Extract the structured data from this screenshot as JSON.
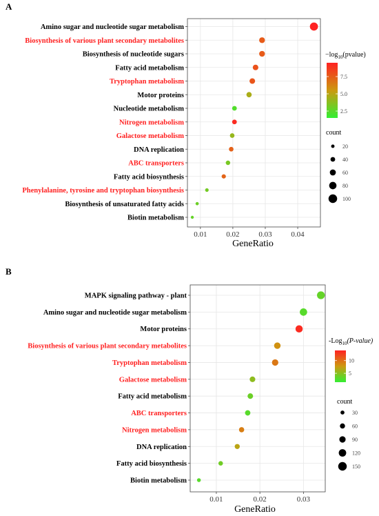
{
  "chart_data": [
    {
      "type": "scatter",
      "panel_label": "A",
      "xlabel": "GeneRatio",
      "xlim": [
        0.006,
        0.047
      ],
      "xticks": [
        0.01,
        0.02,
        0.03,
        0.04
      ],
      "xtick_labels": [
        "0.01",
        "0.02",
        "0.03",
        "0.04"
      ],
      "grid": true,
      "legend_position": "right",
      "categories": [
        {
          "name": "Amino sugar and nucleotide sugar metabolism",
          "x": 0.045,
          "count": 92,
          "pvalue": 9.5,
          "highlight": false
        },
        {
          "name": "Biosynthesis of various plant secondary metabolites",
          "x": 0.029,
          "count": 56,
          "pvalue": 7.6,
          "highlight": true
        },
        {
          "name": "Biosynthesis of nucleotide sugars",
          "x": 0.029,
          "count": 56,
          "pvalue": 7.6,
          "highlight": false
        },
        {
          "name": "Fatty acid metabolism",
          "x": 0.027,
          "count": 53,
          "pvalue": 7.9,
          "highlight": false
        },
        {
          "name": "Tryptophan metabolism",
          "x": 0.026,
          "count": 53,
          "pvalue": 7.8,
          "highlight": true
        },
        {
          "name": "Motor proteins",
          "x": 0.025,
          "count": 49,
          "pvalue": 4.6,
          "highlight": false
        },
        {
          "name": "Nucleotide metabolism",
          "x": 0.0205,
          "count": 40,
          "pvalue": 2.3,
          "highlight": false
        },
        {
          "name": "Nitrogen metabolism",
          "x": 0.0205,
          "count": 40,
          "pvalue": 9.2,
          "highlight": true
        },
        {
          "name": "Galactose metabolism",
          "x": 0.0198,
          "count": 38,
          "pvalue": 4.1,
          "highlight": true
        },
        {
          "name": "DNA replication",
          "x": 0.0195,
          "count": 38,
          "pvalue": 7.4,
          "highlight": false
        },
        {
          "name": "ABC transporters",
          "x": 0.0185,
          "count": 36,
          "pvalue": 3.3,
          "highlight": true
        },
        {
          "name": "Fatty acid biosynthesis",
          "x": 0.0172,
          "count": 33,
          "pvalue": 7.3,
          "highlight": false
        },
        {
          "name": "Phenylalanine, tyrosine and tryptophan biosynthesis",
          "x": 0.012,
          "count": 22,
          "pvalue": 3.2,
          "highlight": true
        },
        {
          "name": "Biosynthesis of unsaturated fatty acids",
          "x": 0.009,
          "count": 17,
          "pvalue": 3.0,
          "highlight": false
        },
        {
          "name": "Biotin metabolism",
          "x": 0.0075,
          "count": 14,
          "pvalue": 2.8,
          "highlight": false
        }
      ],
      "color_legend": {
        "title_main": "−log",
        "title_sub": "10",
        "title_rest": "(pvalue)",
        "min": 1.5,
        "max": 9.5,
        "ticks": [
          2.5,
          5.0,
          7.5
        ],
        "tick_labels": [
          "2.5",
          "5.0",
          "7.5"
        ],
        "low_color": "#33ee33",
        "high_color": "#ff2222"
      },
      "size_legend": {
        "title": "count",
        "min": 10,
        "max": 105,
        "values": [
          20,
          40,
          60,
          80,
          100
        ],
        "labels": [
          "20",
          "40",
          "60",
          "80",
          "100"
        ]
      }
    },
    {
      "type": "scatter",
      "panel_label": "B",
      "xlabel": "GeneRatio",
      "xlim": [
        0.004,
        0.035
      ],
      "xticks": [
        0.01,
        0.02,
        0.03
      ],
      "xtick_labels": [
        "0.01",
        "0.02",
        "0.03"
      ],
      "grid": true,
      "legend_position": "right",
      "categories": [
        {
          "name": "MAPK signaling pathway - plant",
          "x": 0.034,
          "count": 130,
          "pvalue": 3.5,
          "highlight": false
        },
        {
          "name": "Amino sugar and nucleotide sugar metabolism",
          "x": 0.03,
          "count": 118,
          "pvalue": 3.0,
          "highlight": false
        },
        {
          "name": "Motor proteins",
          "x": 0.029,
          "count": 115,
          "pvalue": 13.5,
          "highlight": false
        },
        {
          "name": "Biosynthesis of various plant secondary metabolites",
          "x": 0.024,
          "count": 95,
          "pvalue": 8.2,
          "highlight": true
        },
        {
          "name": "Tryptophan metabolism",
          "x": 0.0235,
          "count": 92,
          "pvalue": 9.5,
          "highlight": true
        },
        {
          "name": "Galactose metabolism",
          "x": 0.0183,
          "count": 72,
          "pvalue": 5.2,
          "highlight": true
        },
        {
          "name": "Fatty acid metabolism",
          "x": 0.0178,
          "count": 70,
          "pvalue": 3.8,
          "highlight": false
        },
        {
          "name": "ABC transporters",
          "x": 0.0172,
          "count": 66,
          "pvalue": 3.0,
          "highlight": true
        },
        {
          "name": "Nitrogen metabolism",
          "x": 0.0158,
          "count": 62,
          "pvalue": 9.2,
          "highlight": true
        },
        {
          "name": "DNA replication",
          "x": 0.0148,
          "count": 58,
          "pvalue": 7.0,
          "highlight": false
        },
        {
          "name": "Fatty acid biosynthesis",
          "x": 0.011,
          "count": 43,
          "pvalue": 4.0,
          "highlight": false
        },
        {
          "name": "Biotin metabolism",
          "x": 0.006,
          "count": 24,
          "pvalue": 3.0,
          "highlight": false
        }
      ],
      "color_legend": {
        "title_main": "-Log",
        "title_sub": "10",
        "title_rest": "(P-value)",
        "min": 1.5,
        "max": 14,
        "ticks": [
          5,
          10
        ],
        "tick_labels": [
          "5",
          "10"
        ],
        "low_color": "#33ee33",
        "high_color": "#ff2222"
      },
      "size_legend": {
        "title": "count",
        "min": 15,
        "max": 160,
        "values": [
          30,
          60,
          90,
          120,
          150
        ],
        "labels": [
          "30",
          "60",
          "90",
          "120",
          "150"
        ]
      }
    }
  ],
  "colors": {
    "highlight_label": "#ff2020",
    "normal_label": "#000000",
    "grid": "#e6e6e6",
    "panel_border": "#444444"
  }
}
